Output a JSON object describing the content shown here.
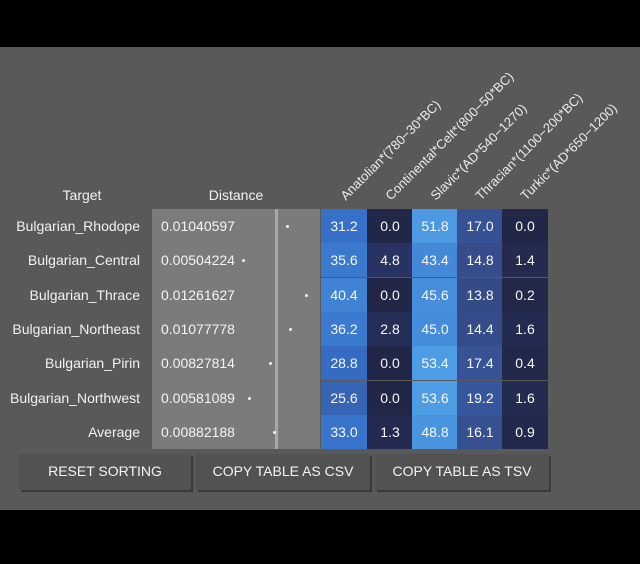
{
  "table": {
    "headers": {
      "target": "Target",
      "distance": "Distance",
      "components": [
        "Anatolian*(780−30*BC)",
        "Continental*Celt*(800−50*BC)",
        "Slavic*(AD*540−1270)",
        "Thracian*(1100−200*BC)",
        "Turkic*(AD*650−1200)"
      ]
    },
    "rows": [
      {
        "target": "Bulgarian_Rhodope",
        "distance": "0.01040597",
        "values": [
          "31.2",
          "0.0",
          "51.8",
          "17.0",
          "0.0"
        ]
      },
      {
        "target": "Bulgarian_Central",
        "distance": "0.00504224",
        "values": [
          "35.6",
          "4.8",
          "43.4",
          "14.8",
          "1.4"
        ]
      },
      {
        "target": "Bulgarian_Thrace",
        "distance": "0.01261627",
        "values": [
          "40.4",
          "0.0",
          "45.6",
          "13.8",
          "0.2"
        ]
      },
      {
        "target": "Bulgarian_Northeast",
        "distance": "0.01077778",
        "values": [
          "36.2",
          "2.8",
          "45.0",
          "14.4",
          "1.6"
        ]
      },
      {
        "target": "Bulgarian_Pirin",
        "distance": "0.00827814",
        "values": [
          "28.8",
          "0.0",
          "53.4",
          "17.4",
          "0.4"
        ]
      },
      {
        "target": "Bulgarian_Northwest",
        "distance": "0.00581089",
        "values": [
          "25.6",
          "0.0",
          "53.6",
          "19.2",
          "1.6"
        ]
      },
      {
        "target": "Average",
        "distance": "0.00882188",
        "values": [
          "33.0",
          "1.3",
          "48.8",
          "16.1",
          "0.9"
        ]
      }
    ]
  },
  "buttons": {
    "reset": "RESET SORTING",
    "csv": "COPY TABLE AS CSV",
    "tsv": "COPY TABLE AS TSV"
  },
  "colors": {
    "panel": "#595959",
    "distance_box": "#7b7b7b"
  }
}
